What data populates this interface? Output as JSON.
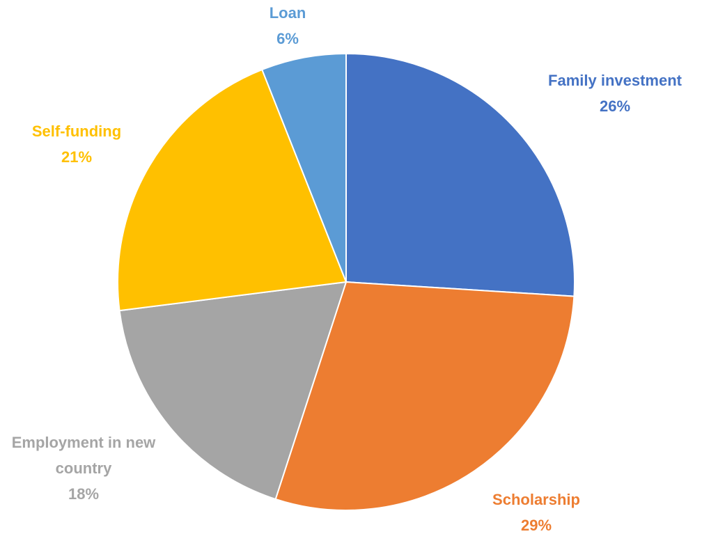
{
  "chart_data": {
    "type": "pie",
    "categories": [
      "Family investment",
      "Scholarship",
      "Employment in new country",
      "Self-funding",
      "Loan"
    ],
    "values": [
      26,
      29,
      18,
      21,
      6
    ],
    "value_labels": [
      "26%",
      "29%",
      "18%",
      "21%",
      "6%"
    ],
    "colors": [
      "#4472c4",
      "#ed7d31",
      "#a5a5a5",
      "#ffc000",
      "#5b9bd5"
    ]
  }
}
